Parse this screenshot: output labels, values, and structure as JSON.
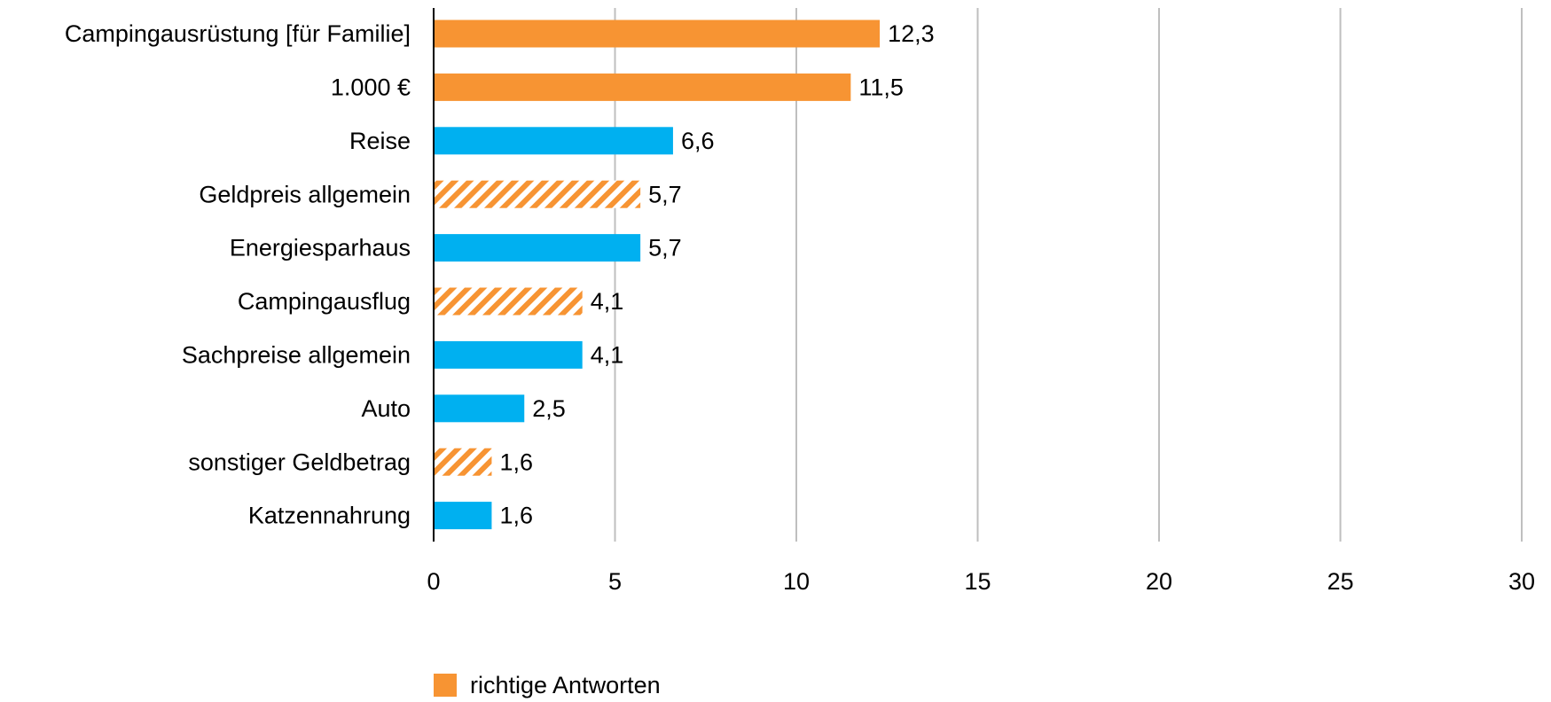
{
  "chart_data": {
    "type": "bar",
    "orientation": "horizontal",
    "categories": [
      "Campingausrüstung [für Familie]",
      "1.000 €",
      "Reise",
      "Geldpreis allgemein",
      "Energiesparhaus",
      "Campingausflug",
      "Sachpreise allgemein",
      "Auto",
      "sonstiger Geldbetrag",
      "Katzennahrung"
    ],
    "values": [
      12.3,
      11.5,
      6.6,
      5.7,
      5.7,
      4.1,
      4.1,
      2.5,
      1.6,
      1.6
    ],
    "value_labels": [
      "12,3",
      "11,5",
      "6,6",
      "5,7",
      "5,7",
      "4,1",
      "4,1",
      "2,5",
      "1,6",
      "1,6"
    ],
    "colors": [
      "#f79433",
      "#f79433",
      "#00b0f0",
      "#f79433",
      "#00b0f0",
      "#f79433",
      "#00b0f0",
      "#00b0f0",
      "#f79433",
      "#00b0f0"
    ],
    "hatched": [
      false,
      false,
      false,
      true,
      false,
      true,
      false,
      false,
      true,
      false
    ],
    "xlim": [
      0,
      30
    ],
    "xticks": [
      0,
      5,
      10,
      15,
      20,
      25,
      30
    ],
    "grid": true,
    "legend": {
      "label": "richtige Antworten",
      "color": "#f79433",
      "position": "bottom"
    }
  }
}
